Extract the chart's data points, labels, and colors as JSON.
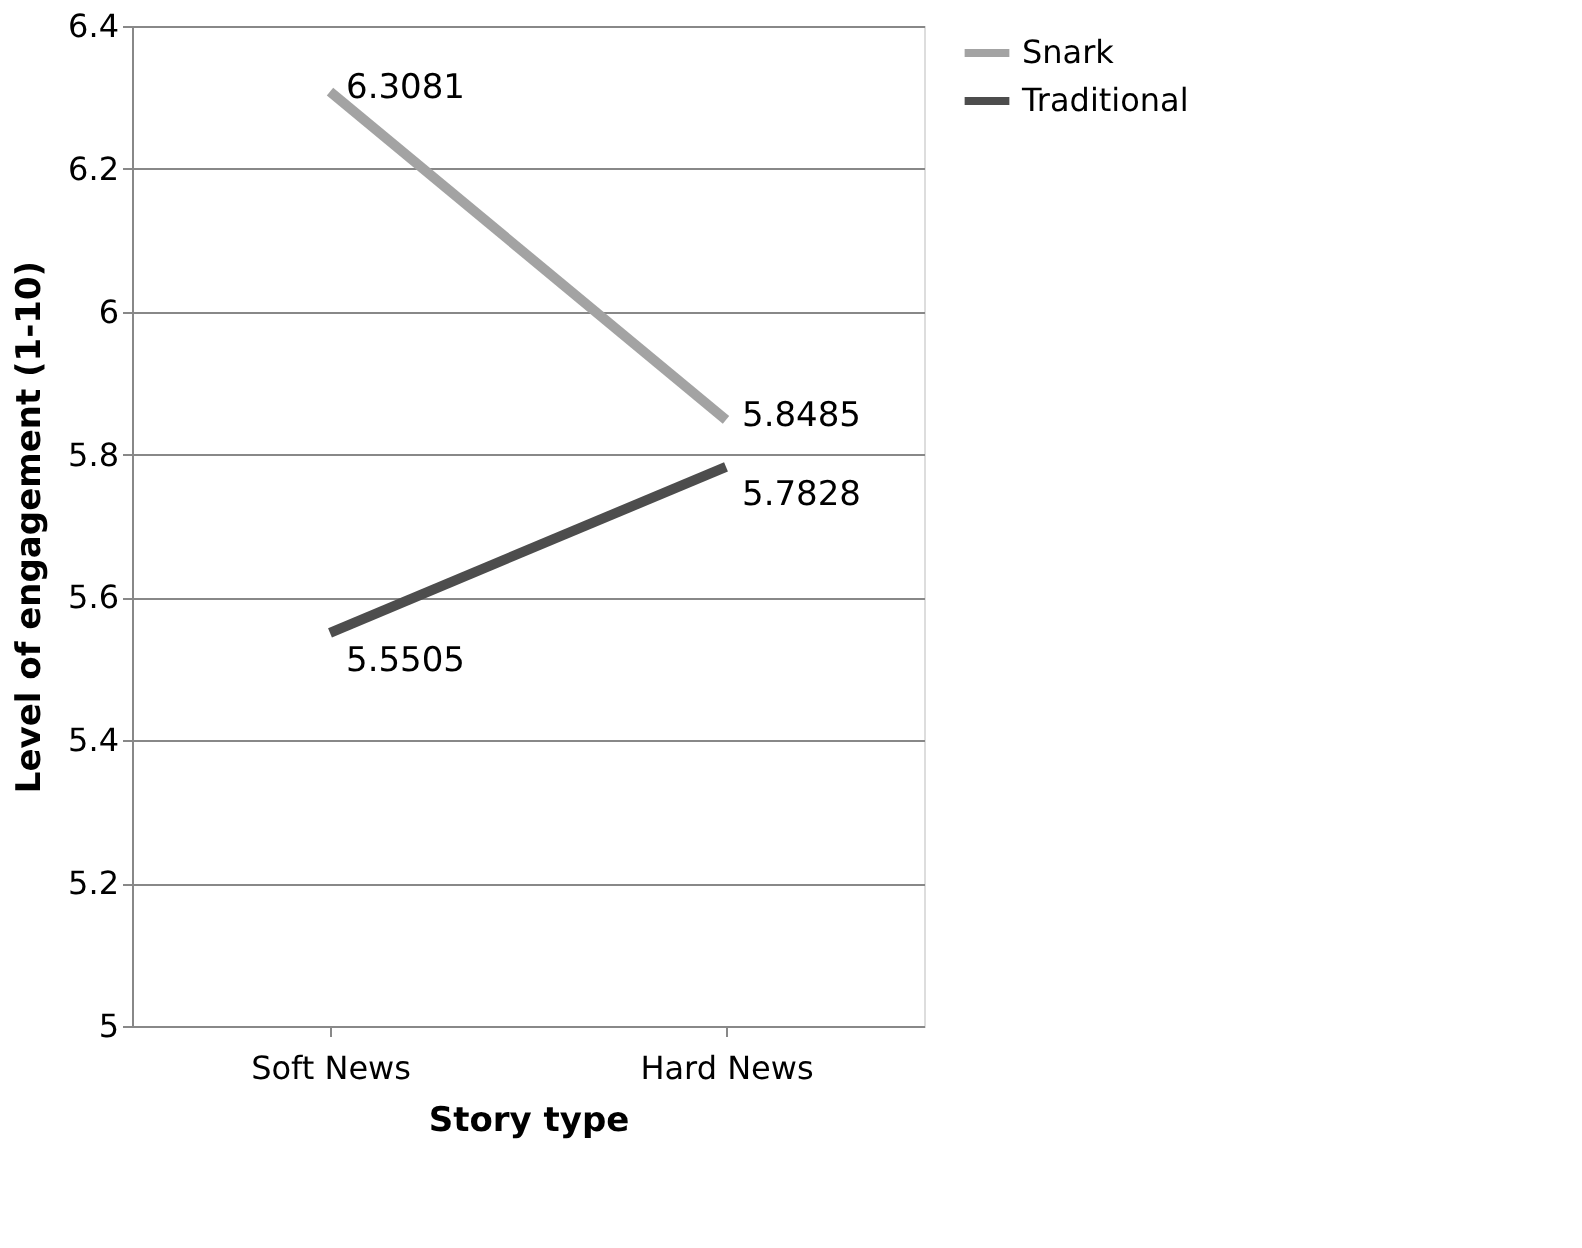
{
  "chart_data": {
    "type": "line",
    "xlabel": "Story type",
    "ylabel": "Level of engagement (1-10)",
    "categories": [
      "Soft News",
      "Hard News"
    ],
    "series": [
      {
        "name": "Snark",
        "color": "#a3a3a3",
        "values": [
          6.3081,
          5.8485
        ]
      },
      {
        "name": "Traditional",
        "color": "#4d4d4d",
        "values": [
          5.5505,
          5.7828
        ]
      }
    ],
    "ylim": [
      5,
      6.4
    ],
    "yticks": [
      5,
      5.2,
      5.4,
      5.6,
      5.8,
      6,
      6.2,
      6.4
    ],
    "grid": "y",
    "legend": "right",
    "data_labels": true,
    "marker": "none",
    "line_style": "solid"
  }
}
